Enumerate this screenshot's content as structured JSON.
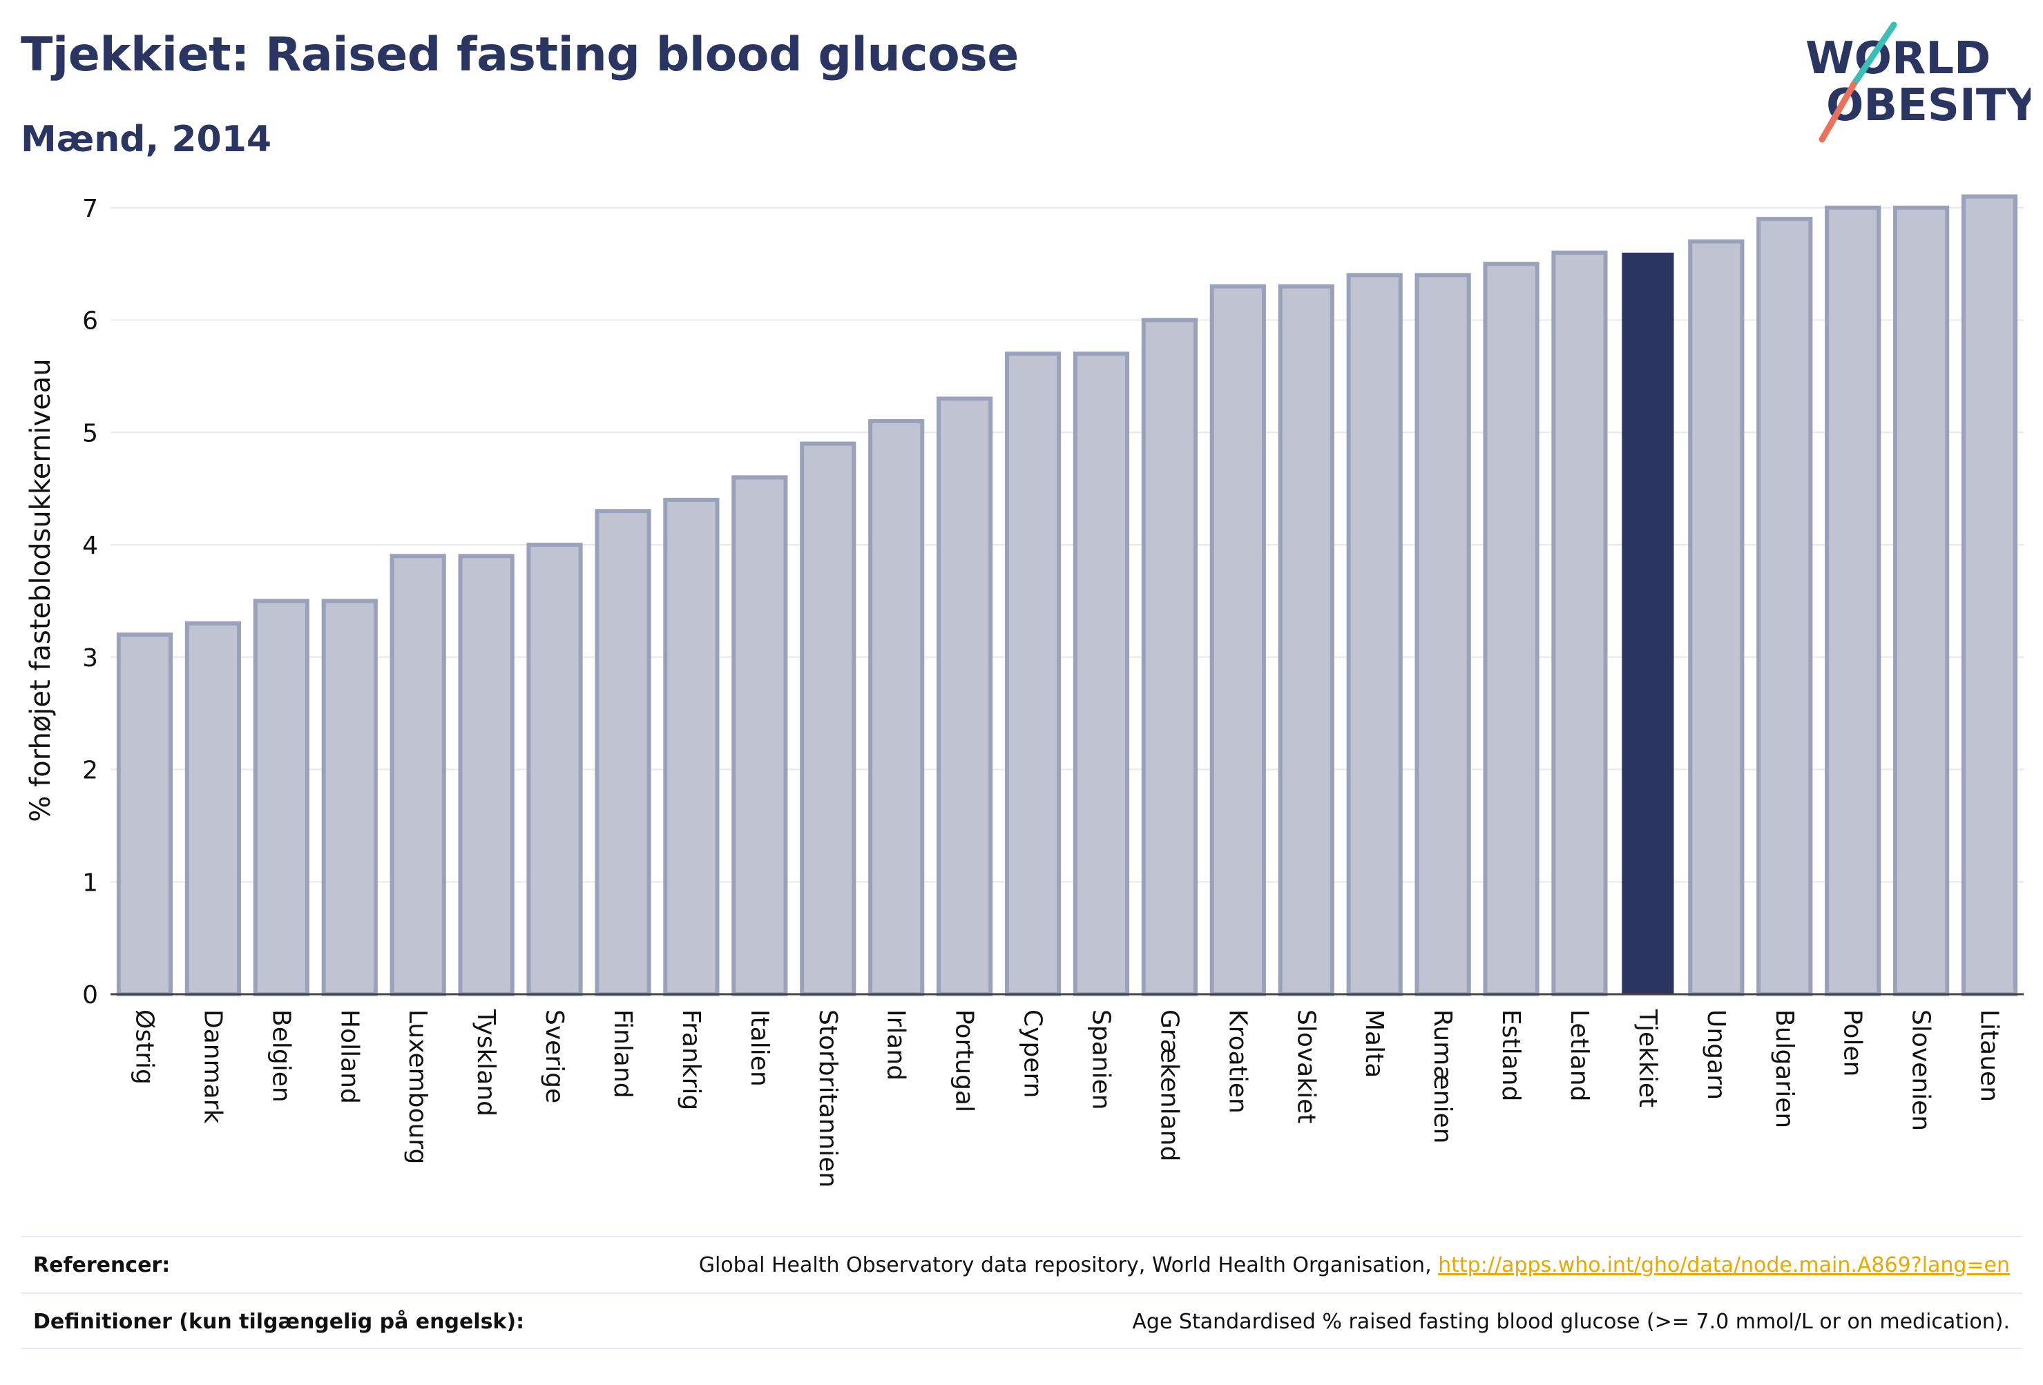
{
  "header": {
    "title": "Tjekkiet: Raised fasting blood glucose",
    "subtitle": "Mænd, 2014",
    "logo_line1": "WORLD",
    "logo_line2": "OBESITY"
  },
  "colors": {
    "bar_fill": "#c0c4d2",
    "bar_stroke": "#9aa1ba",
    "highlight": "#2b3561",
    "grid": "#e6e8ef",
    "logo_teal": "#3bbdb8",
    "logo_coral": "#e8725c"
  },
  "chart_data": {
    "type": "bar",
    "ylabel": "% forhøjet fasteblodsukkerniveau",
    "ylim": [
      0,
      7.3
    ],
    "yticks": [
      0,
      1,
      2,
      3,
      4,
      5,
      6,
      7
    ],
    "grid": true,
    "highlight_category": "Tjekkiet",
    "categories": [
      "Østrig",
      "Danmark",
      "Belgien",
      "Holland",
      "Luxembourg",
      "Tyskland",
      "Sverige",
      "Finland",
      "Frankrig",
      "Italien",
      "Storbritannien",
      "Irland",
      "Portugal",
      "Cypern",
      "Spanien",
      "Grækenland",
      "Kroatien",
      "Slovakiet",
      "Malta",
      "Rumænien",
      "Estland",
      "Letland",
      "Tjekkiet",
      "Ungarn",
      "Bulgarien",
      "Polen",
      "Slovenien",
      "Litauen"
    ],
    "values": [
      3.2,
      3.3,
      3.5,
      3.5,
      3.9,
      3.9,
      4.0,
      4.3,
      4.4,
      4.6,
      4.9,
      5.1,
      5.3,
      5.7,
      5.7,
      6.0,
      6.3,
      6.3,
      6.4,
      6.4,
      6.5,
      6.6,
      6.6,
      6.7,
      6.9,
      7.0,
      7.0,
      7.1
    ]
  },
  "footer": {
    "references_label": "Referencer:",
    "references_text": "Global Health Observatory data repository, World Health Organisation, ",
    "references_link": "http://apps.who.int/gho/data/node.main.A869?lang=en",
    "definitions_label": "Definitioner (kun tilgængelig på engelsk):",
    "definitions_text": "Age Standardised % raised fasting blood glucose (>= 7.0 mmol/L or on medication)."
  }
}
